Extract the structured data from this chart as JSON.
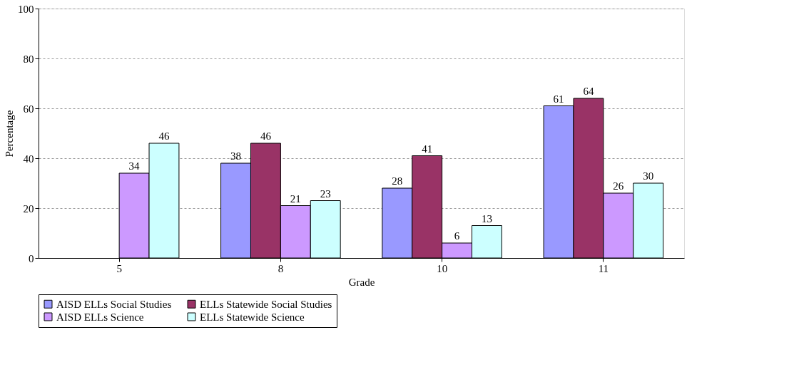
{
  "chart_data": {
    "type": "bar",
    "xlabel": "Grade",
    "ylabel": "Percentage",
    "categories": [
      "5",
      "8",
      "10",
      "11"
    ],
    "series": [
      {
        "name": "AISD ELLs Social Studies",
        "color": "#9999ff",
        "values": [
          null,
          38,
          28,
          61
        ]
      },
      {
        "name": "ELLs Statewide Social Studies",
        "color": "#993366",
        "values": [
          null,
          46,
          41,
          64
        ]
      },
      {
        "name": "AISD ELLs Science",
        "color": "#cc99ff",
        "values": [
          34,
          21,
          6,
          26
        ]
      },
      {
        "name": "ELLs Statewide Science",
        "color": "#ccffff",
        "values": [
          46,
          23,
          13,
          30
        ]
      }
    ],
    "ylim": [
      0,
      100
    ],
    "yticks": [
      0,
      20,
      40,
      60,
      80,
      100
    ],
    "grid": "y",
    "legend": "bottom",
    "data_labels": true
  }
}
